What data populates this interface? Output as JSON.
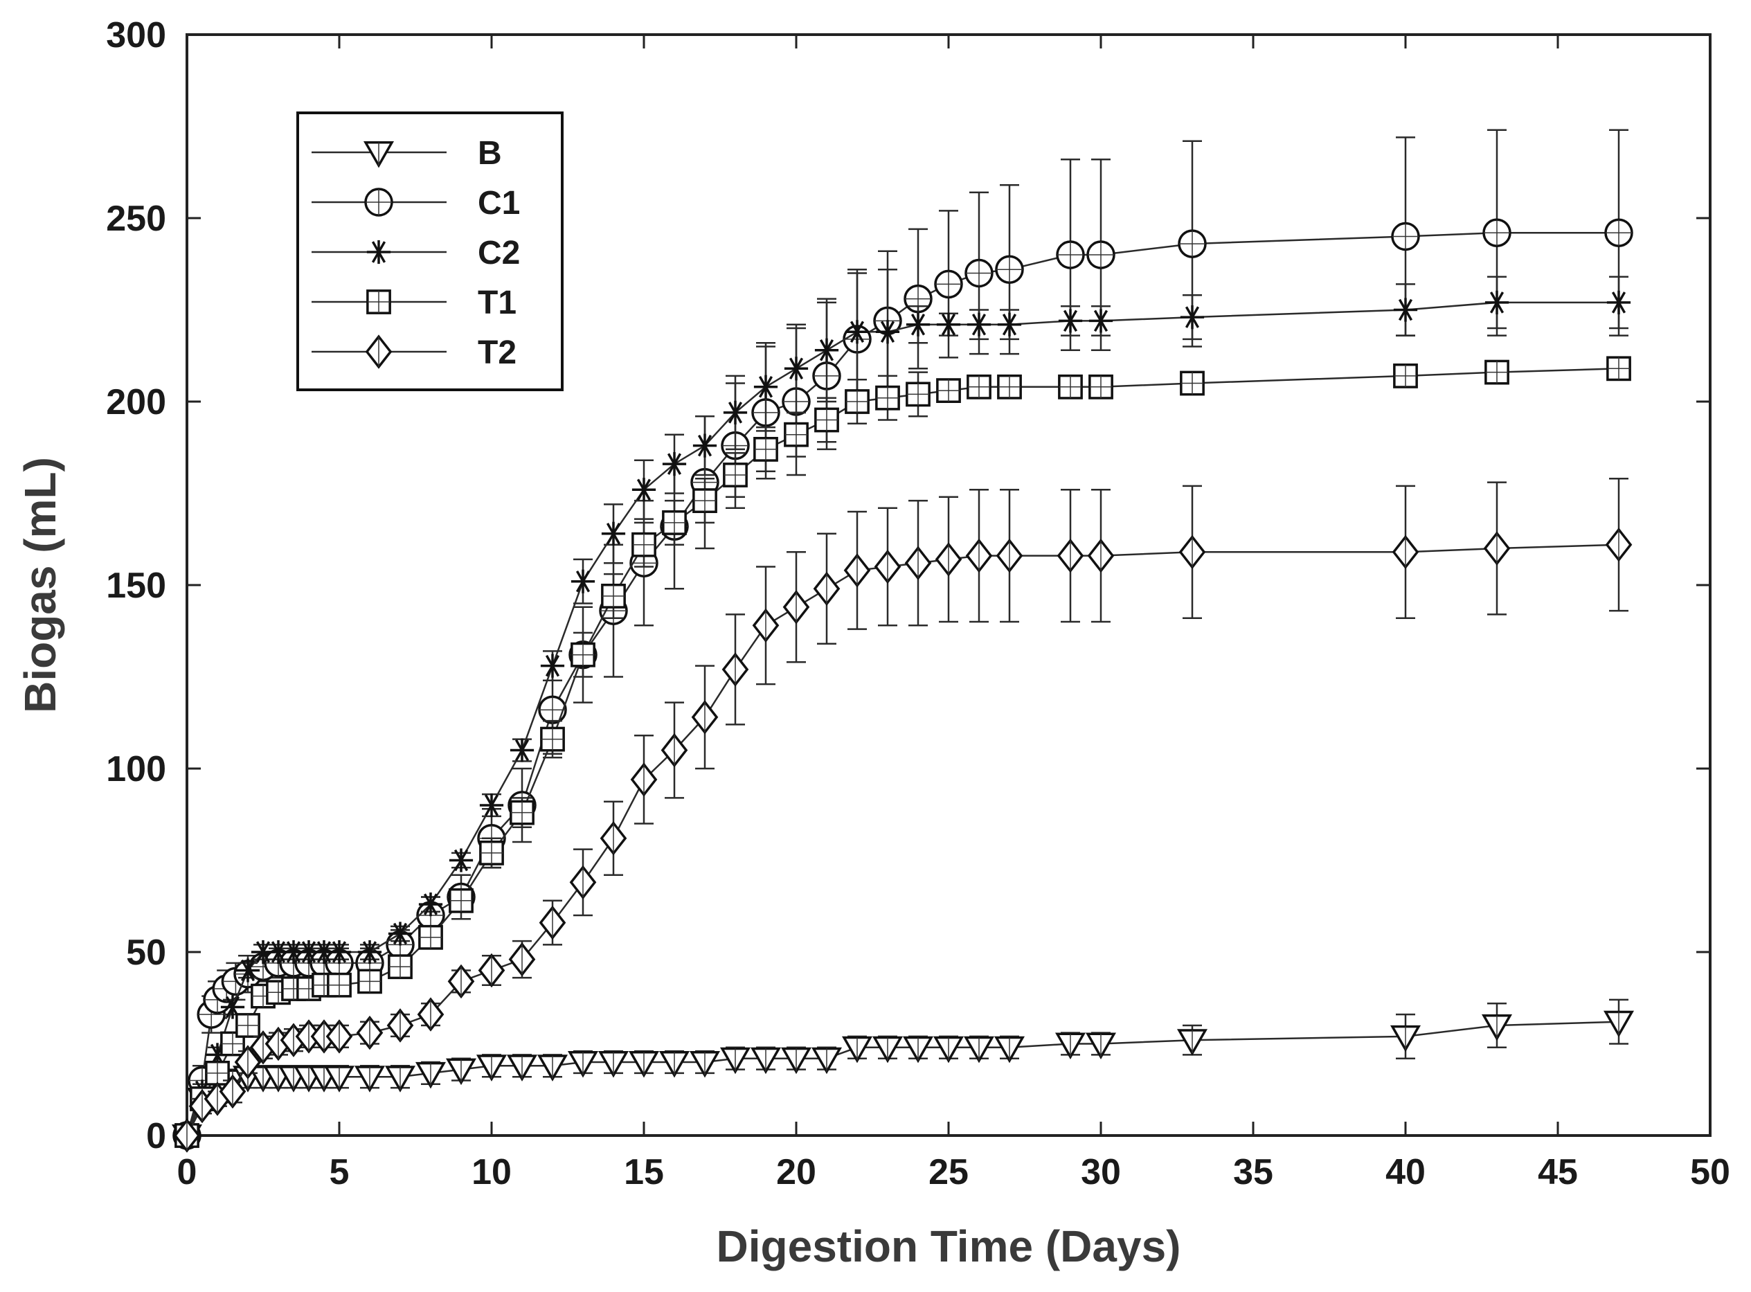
{
  "chart_data": {
    "type": "line",
    "title": "",
    "xlabel": "Digestion Time (Days)",
    "ylabel": "Biogas (mL)",
    "xlim": [
      0,
      50
    ],
    "ylim": [
      0,
      300
    ],
    "xticks": [
      0,
      5,
      10,
      15,
      20,
      25,
      30,
      35,
      40,
      45,
      50
    ],
    "yticks": [
      0,
      50,
      100,
      150,
      200,
      250,
      300
    ],
    "grid": false,
    "legend_position": "top-left",
    "series": [
      {
        "name": "B",
        "marker": "triangle-down",
        "x": [
          0,
          0.5,
          1,
          1.5,
          2,
          2.5,
          3,
          3.5,
          4,
          4.5,
          5,
          6,
          7,
          8,
          9,
          10,
          11,
          12,
          13,
          14,
          15,
          16,
          17,
          18,
          19,
          20,
          21,
          22,
          23,
          24,
          25,
          26,
          27,
          29,
          30,
          33,
          40,
          43,
          47
        ],
        "y": [
          0,
          10,
          13,
          15,
          16,
          16,
          16,
          16,
          16,
          16,
          16,
          16,
          16,
          17,
          18,
          19,
          19,
          19,
          20,
          20,
          20,
          20,
          20,
          21,
          21,
          21,
          21,
          24,
          24,
          24,
          24,
          24,
          24,
          25,
          25,
          26,
          27,
          30,
          31
        ],
        "err": [
          0,
          3,
          3,
          3,
          3,
          3,
          3,
          3,
          3,
          3,
          3,
          3,
          3,
          3,
          3,
          3,
          3,
          3,
          3,
          3,
          3,
          3,
          3,
          3,
          3,
          3,
          3,
          3,
          3,
          3,
          3,
          3,
          3,
          3,
          3,
          4,
          6,
          6,
          6
        ]
      },
      {
        "name": "C1",
        "marker": "circle",
        "x": [
          0,
          0.5,
          0.8,
          1,
          1.3,
          1.6,
          2,
          2.5,
          3,
          3.5,
          4,
          4.5,
          5,
          6,
          7,
          8,
          9,
          10,
          11,
          12,
          13,
          14,
          15,
          16,
          17,
          18,
          19,
          20,
          21,
          22,
          23,
          24,
          25,
          26,
          27,
          29,
          30,
          33,
          40,
          43,
          47
        ],
        "y": [
          0,
          15,
          33,
          37,
          40,
          42,
          44,
          46,
          47,
          47,
          47,
          47,
          47,
          47,
          52,
          60,
          65,
          81,
          90,
          116,
          131,
          143,
          156,
          166,
          178,
          188,
          197,
          200,
          207,
          217,
          222,
          228,
          232,
          235,
          236,
          240,
          240,
          243,
          245,
          246,
          246
        ],
        "err": [
          0,
          4,
          5,
          5,
          5,
          5,
          5,
          4,
          4,
          4,
          4,
          4,
          4,
          4,
          4,
          5,
          6,
          8,
          10,
          12,
          13,
          18,
          17,
          17,
          18,
          17,
          18,
          20,
          20,
          19,
          19,
          19,
          20,
          22,
          23,
          26,
          26,
          28,
          27,
          28,
          28
        ]
      },
      {
        "name": "C2",
        "marker": "asterisk",
        "x": [
          0,
          0.5,
          1,
          1.5,
          2,
          2.5,
          3,
          3.5,
          4,
          4.5,
          5,
          6,
          7,
          8,
          9,
          10,
          11,
          12,
          13,
          14,
          15,
          16,
          17,
          18,
          19,
          20,
          21,
          22,
          23,
          24,
          25,
          26,
          27,
          29,
          30,
          33,
          40,
          43,
          47
        ],
        "y": [
          0,
          12,
          22,
          35,
          45,
          50,
          50,
          50,
          50,
          50,
          50,
          50,
          55,
          63,
          75,
          90,
          105,
          128,
          151,
          164,
          176,
          183,
          188,
          197,
          204,
          209,
          214,
          219,
          219,
          221,
          221,
          221,
          221,
          222,
          222,
          223,
          225,
          227,
          227
        ],
        "err": [
          0,
          2,
          2,
          2,
          2,
          2,
          2,
          2,
          2,
          2,
          2,
          2,
          2,
          2,
          2,
          3,
          3,
          4,
          6,
          8,
          8,
          8,
          8,
          10,
          12,
          12,
          14,
          16,
          17,
          5,
          3,
          4,
          4,
          4,
          4,
          6,
          7,
          7,
          7
        ]
      },
      {
        "name": "T1",
        "marker": "square",
        "x": [
          0,
          0.5,
          1,
          1.5,
          2,
          2.5,
          3,
          3.5,
          4,
          4.5,
          5,
          6,
          7,
          8,
          9,
          10,
          11,
          12,
          13,
          14,
          15,
          16,
          17,
          18,
          19,
          20,
          21,
          22,
          23,
          24,
          25,
          26,
          27,
          29,
          30,
          33,
          40,
          43,
          47
        ],
        "y": [
          0,
          10,
          17,
          25,
          30,
          38,
          39,
          40,
          40,
          41,
          41,
          42,
          46,
          54,
          64,
          77,
          88,
          108,
          131,
          147,
          161,
          167,
          173,
          180,
          187,
          191,
          195,
          200,
          201,
          202,
          203,
          204,
          204,
          204,
          204,
          205,
          207,
          208,
          209
        ],
        "err": [
          0,
          2,
          3,
          3,
          3,
          3,
          3,
          3,
          3,
          3,
          3,
          3,
          3,
          3,
          3,
          4,
          4,
          5,
          6,
          6,
          6,
          6,
          6,
          6,
          6,
          6,
          6,
          6,
          6,
          6,
          3,
          2,
          2,
          2,
          2,
          3,
          2,
          2,
          2
        ]
      },
      {
        "name": "T2",
        "marker": "diamond",
        "x": [
          0,
          0.5,
          1,
          1.5,
          2,
          2.5,
          3,
          3.5,
          4,
          4.5,
          5,
          6,
          7,
          8,
          9,
          10,
          11,
          12,
          13,
          14,
          15,
          16,
          17,
          18,
          19,
          20,
          21,
          22,
          23,
          24,
          25,
          26,
          27,
          29,
          30,
          33,
          40,
          43,
          47
        ],
        "y": [
          0,
          8,
          10,
          12,
          20,
          24,
          25,
          26,
          27,
          27,
          27,
          28,
          30,
          33,
          42,
          45,
          48,
          58,
          69,
          81,
          97,
          105,
          114,
          127,
          139,
          144,
          149,
          154,
          155,
          156,
          157,
          158,
          158,
          158,
          158,
          159,
          159,
          160,
          161
        ],
        "err": [
          0,
          2,
          2,
          3,
          3,
          3,
          3,
          3,
          3,
          3,
          3,
          3,
          3,
          3,
          3,
          4,
          5,
          6,
          9,
          10,
          12,
          13,
          14,
          15,
          16,
          15,
          15,
          16,
          16,
          17,
          17,
          18,
          18,
          18,
          18,
          18,
          18,
          18,
          18
        ]
      }
    ]
  }
}
